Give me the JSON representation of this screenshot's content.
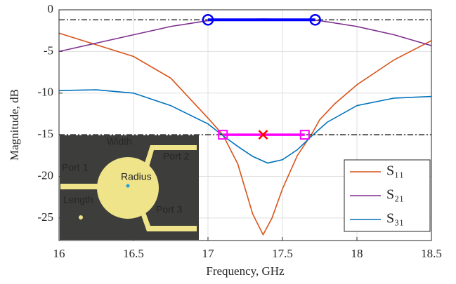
{
  "chart_data": {
    "type": "line",
    "xlabel": "Frequency, GHz",
    "ylabel": "Magnitude, dB",
    "xlim": [
      16,
      18.5
    ],
    "ylim": [
      -27.7,
      0
    ],
    "xticks": [
      16,
      16.5,
      17,
      17.5,
      18,
      18.5
    ],
    "yticks": [
      0,
      -5,
      -10,
      -15,
      -20,
      -25
    ],
    "grid": true,
    "legend": "lower right",
    "series": [
      {
        "name": "S₁₁",
        "color": "#d95319",
        "x": [
          16,
          16.25,
          16.5,
          16.75,
          17,
          17.1,
          17.2,
          17.25,
          17.3,
          17.37,
          17.43,
          17.5,
          17.6,
          17.7,
          17.75,
          17.85,
          18,
          18.25,
          18.5
        ],
        "values": [
          -2.8,
          -4.2,
          -5.6,
          -8.2,
          -13,
          -15,
          -18.5,
          -21.5,
          -24.5,
          -27,
          -25,
          -21.5,
          -17.5,
          -14.8,
          -13.2,
          -11.3,
          -9,
          -6,
          -3.7
        ]
      },
      {
        "name": "S₂₁",
        "color": "#7e2f8e",
        "x": [
          16,
          16.25,
          16.5,
          16.75,
          17,
          17.2,
          17.37,
          17.55,
          17.75,
          18,
          18.25,
          18.5
        ],
        "values": [
          -5,
          -4,
          -3,
          -2,
          -1.3,
          -1.15,
          -1.1,
          -1.15,
          -1.3,
          -2,
          -3,
          -4.3
        ]
      },
      {
        "name": "S₃₁",
        "color": "#0072bd",
        "x": [
          16,
          16.25,
          16.5,
          16.75,
          17,
          17.1,
          17.2,
          17.3,
          17.4,
          17.5,
          17.6,
          17.7,
          17.8,
          18,
          18.25,
          18.5
        ],
        "values": [
          -9.7,
          -9.6,
          -10,
          -11.5,
          -13.7,
          -15.1,
          -16.4,
          -17.6,
          -18.4,
          -18,
          -16.8,
          -15.1,
          -13.5,
          -11.5,
          -10.6,
          -10.4
        ]
      }
    ],
    "reference_lines": [
      -1.2,
      -15
    ],
    "band_21": {
      "color": "#0000ff",
      "x": [
        17,
        17.72
      ],
      "y": -1.2
    },
    "band_11": {
      "color": "#ff00ff",
      "x": [
        17.1,
        17.65
      ],
      "y": -15,
      "center": 17.37,
      "center_color": "#ff0000"
    },
    "inset_labels": [
      "Width",
      "Port 1",
      "Port 2",
      "Radius",
      "Length",
      "Port 3"
    ]
  }
}
